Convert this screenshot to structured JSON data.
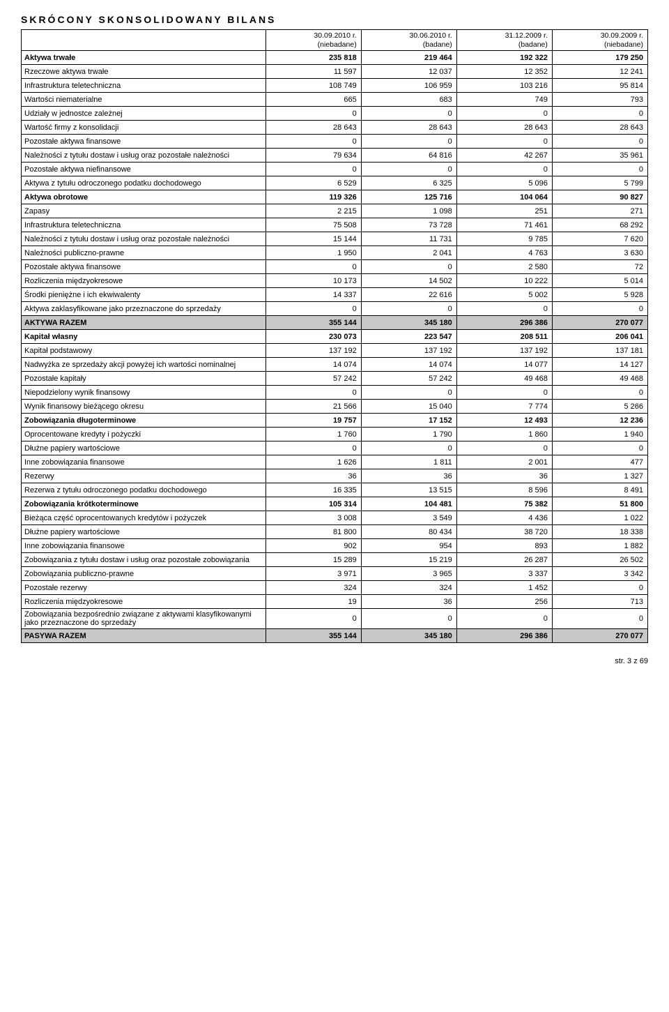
{
  "title": "SKRÓCONY SKONSOLIDOWANY BILANS",
  "headers": [
    {
      "line1": "30.09.2010 r.",
      "line2": "(niebadane)"
    },
    {
      "line1": "30.06.2010 r.",
      "line2": "(badane)"
    },
    {
      "line1": "31.12.2009 r.",
      "line2": "(badane)"
    },
    {
      "line1": "30.09.2009 r.",
      "line2": "(niebadane)"
    }
  ],
  "rows": [
    {
      "label": "Aktywa trwałe",
      "vals": [
        "235 818",
        "219 464",
        "192 322",
        "179 250"
      ],
      "bold": true
    },
    {
      "label": "Rzeczowe aktywa trwałe",
      "vals": [
        "11 597",
        "12 037",
        "12 352",
        "12 241"
      ]
    },
    {
      "label": "Infrastruktura teletechniczna",
      "vals": [
        "108 749",
        "106 959",
        "103 216",
        "95 814"
      ]
    },
    {
      "label": "Wartości niematerialne",
      "vals": [
        "665",
        "683",
        "749",
        "793"
      ]
    },
    {
      "label": "Udziały w jednostce zależnej",
      "vals": [
        "0",
        "0",
        "0",
        "0"
      ]
    },
    {
      "label": "Wartość firmy z konsolidacji",
      "vals": [
        "28 643",
        "28 643",
        "28 643",
        "28 643"
      ]
    },
    {
      "label": "Pozostałe aktywa finansowe",
      "vals": [
        "0",
        "0",
        "0",
        "0"
      ]
    },
    {
      "label": "Należności z tytułu dostaw i usług oraz pozostałe należności",
      "vals": [
        "79 634",
        "64 816",
        "42 267",
        "35 961"
      ]
    },
    {
      "label": "Pozostałe aktywa niefinansowe",
      "vals": [
        "0",
        "0",
        "0",
        "0"
      ]
    },
    {
      "label": "Aktywa z tytułu odroczonego podatku dochodowego",
      "vals": [
        "6 529",
        "6 325",
        "5 096",
        "5 799"
      ]
    },
    {
      "label": "Aktywa obrotowe",
      "vals": [
        "119 326",
        "125 716",
        "104 064",
        "90 827"
      ],
      "bold": true
    },
    {
      "label": "Zapasy",
      "vals": [
        "2 215",
        "1 098",
        "251",
        "271"
      ]
    },
    {
      "label": "Infrastruktura teletechniczna",
      "vals": [
        "75 508",
        "73 728",
        "71 461",
        "68 292"
      ]
    },
    {
      "label": "Należności z tytułu dostaw i usług oraz pozostałe należności",
      "vals": [
        "15 144",
        "11 731",
        "9 785",
        "7 620"
      ]
    },
    {
      "label": "Należności publiczno-prawne",
      "vals": [
        "1 950",
        "2 041",
        "4 763",
        "3 630"
      ]
    },
    {
      "label": "Pozostałe aktywa finansowe",
      "vals": [
        "0",
        "0",
        "2 580",
        "72"
      ]
    },
    {
      "label": "Rozliczenia międzyokresowe",
      "vals": [
        "10 173",
        "14 502",
        "10 222",
        "5 014"
      ]
    },
    {
      "label": "Środki pieniężne i ich ekwiwalenty",
      "vals": [
        "14 337",
        "22 616",
        "5 002",
        "5 928"
      ]
    },
    {
      "label": "Aktywa zaklasyfikowane jako przeznaczone do sprzedaży",
      "vals": [
        "0",
        "0",
        "0",
        "0"
      ]
    },
    {
      "label": "AKTYWA  RAZEM",
      "vals": [
        "355 144",
        "345 180",
        "296 386",
        "270 077"
      ],
      "shaded": true
    },
    {
      "label": "Kapitał własny",
      "vals": [
        "230 073",
        "223 547",
        "208 511",
        "206 041"
      ],
      "bold": true
    },
    {
      "label": "Kapitał podstawowy",
      "vals": [
        "137 192",
        "137 192",
        "137 192",
        "137 181"
      ]
    },
    {
      "label": "Nadwyżka ze sprzedaży akcji powyżej ich wartości nominalnej",
      "vals": [
        "14 074",
        "14 074",
        "14 077",
        "14 127"
      ]
    },
    {
      "label": "Pozostałe kapitały",
      "vals": [
        "57 242",
        "57 242",
        "49 468",
        "49 468"
      ]
    },
    {
      "label": "Niepodzielony wynik finansowy",
      "vals": [
        "0",
        "0",
        "0",
        "0"
      ]
    },
    {
      "label": "Wynik finansowy bieżącego okresu",
      "vals": [
        "21 566",
        "15 040",
        "7 774",
        "5 266"
      ]
    },
    {
      "label": "Zobowiązania długoterminowe",
      "vals": [
        "19 757",
        "17 152",
        "12 493",
        "12 236"
      ],
      "bold": true
    },
    {
      "label": "Oprocentowane kredyty i pożyczki",
      "vals": [
        "1 760",
        "1 790",
        "1 860",
        "1 940"
      ]
    },
    {
      "label": "Dłużne papiery wartościowe",
      "vals": [
        "0",
        "0",
        "0",
        "0"
      ]
    },
    {
      "label": "Inne zobowiązania finansowe",
      "vals": [
        "1 626",
        "1 811",
        "2 001",
        "477"
      ]
    },
    {
      "label": "Rezerwy",
      "vals": [
        "36",
        "36",
        "36",
        "1 327"
      ]
    },
    {
      "label": "Rezerwa z tytułu odroczonego podatku dochodowego",
      "vals": [
        "16 335",
        "13 515",
        "8 596",
        "8 491"
      ]
    },
    {
      "label": "Zobowiązania krótkoterminowe",
      "vals": [
        "105 314",
        "104 481",
        "75 382",
        "51 800"
      ],
      "bold": true
    },
    {
      "label": "Bieżąca część oprocentowanych kredytów i pożyczek",
      "vals": [
        "3 008",
        "3 549",
        "4 436",
        "1 022"
      ]
    },
    {
      "label": "Dłużne papiery wartościowe",
      "vals": [
        "81 800",
        "80 434",
        "38 720",
        "18 338"
      ]
    },
    {
      "label": "Inne zobowiązania finansowe",
      "vals": [
        "902",
        "954",
        "893",
        "1 882"
      ]
    },
    {
      "label": "Zobowiązania z tytułu dostaw i usług oraz pozostałe zobowiązania",
      "vals": [
        "15 289",
        "15 219",
        "26 287",
        "26 502"
      ]
    },
    {
      "label": "Zobowiązania publiczno-prawne",
      "vals": [
        "3 971",
        "3 965",
        "3 337",
        "3 342"
      ]
    },
    {
      "label": "Pozostałe rezerwy",
      "vals": [
        "324",
        "324",
        "1 452",
        "0"
      ]
    },
    {
      "label": "Rozliczenia międzyokresowe",
      "vals": [
        "19",
        "36",
        "256",
        "713"
      ]
    },
    {
      "label": "Zobowiązania bezpośrednio związane z aktywami klasyfikowanymi jako przeznaczone do sprzedaży",
      "vals": [
        "0",
        "0",
        "0",
        "0"
      ]
    },
    {
      "label": "PASYWA  RAZEM",
      "vals": [
        "355 144",
        "345 180",
        "296 386",
        "270 077"
      ],
      "shaded": true
    }
  ],
  "footer": "str. 3 z 69"
}
